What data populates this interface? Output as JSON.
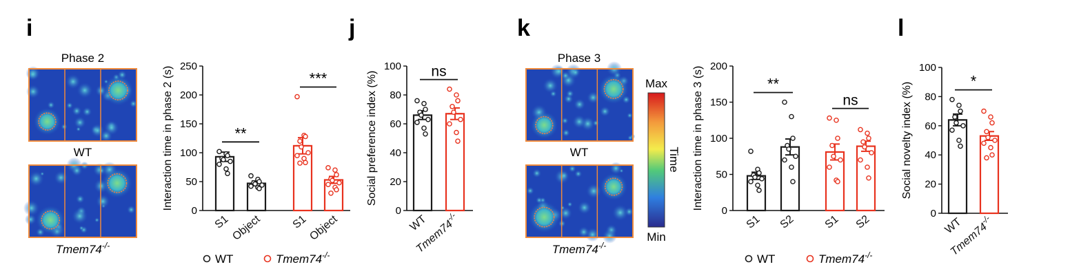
{
  "colors": {
    "wt": "#1a1a1a",
    "ko": "#e8321e",
    "heat_border": "#f08a3a"
  },
  "panels": {
    "i": {
      "letter": "i",
      "heatmap_title": "Phase 2",
      "wt_label": "WT",
      "ko_label": "Tmem74",
      "ko_superscript": "-/-"
    },
    "j": {
      "letter": "j"
    },
    "k": {
      "letter": "k",
      "heatmap_title": "Phase 3",
      "wt_label": "WT",
      "ko_label": "Tmem74",
      "ko_superscript": "-/-",
      "colorbar": {
        "max_label": "Max",
        "min_label": "Min",
        "axis_label": "Time"
      }
    },
    "l": {
      "letter": "l"
    }
  },
  "chart_data": [
    {
      "id": "i-bar",
      "type": "bar",
      "ylabel": "Interaction time in phase 2 (s)",
      "ylim": [
        0,
        250
      ],
      "yticks": [
        0,
        50,
        100,
        150,
        200,
        250
      ],
      "categories": [
        "S1",
        "Object",
        "S1",
        "Object"
      ],
      "groups": [
        "wt",
        "wt",
        "ko",
        "ko"
      ],
      "means": [
        93,
        47,
        112,
        53
      ],
      "sems": [
        8,
        4,
        14,
        6
      ],
      "points": [
        [
          102,
          98,
          95,
          90,
          88,
          85,
          80,
          72,
          64
        ],
        [
          60,
          54,
          50,
          48,
          46,
          44,
          42,
          40,
          38
        ],
        [
          197,
          130,
          128,
          120,
          110,
          100,
          95,
          90,
          83,
          82
        ],
        [
          74,
          70,
          62,
          55,
          52,
          48,
          45,
          40,
          36,
          30
        ]
      ],
      "significance": [
        {
          "from": 0,
          "to": 1,
          "label": "**"
        },
        {
          "from": 2,
          "to": 3,
          "label": "***"
        }
      ],
      "legend": {
        "wt": "WT",
        "ko": "Tmem74",
        "ko_sup": "-/-"
      }
    },
    {
      "id": "j-bar",
      "type": "bar",
      "ylabel": "Social preference index (%)",
      "ylim": [
        0,
        100
      ],
      "yticks": [
        0,
        20,
        40,
        60,
        80,
        100
      ],
      "categories": [
        "WT",
        "Tmem74"
      ],
      "category_sup": [
        "",
        "-/-"
      ],
      "groups": [
        "wt",
        "ko"
      ],
      "means": [
        66,
        67
      ],
      "sems": [
        3,
        4
      ],
      "points": [
        [
          76,
          74,
          70,
          68,
          66,
          63,
          61,
          57,
          53
        ],
        [
          84,
          80,
          76,
          72,
          68,
          63,
          60,
          54,
          48
        ]
      ],
      "significance": [
        {
          "from": 0,
          "to": 1,
          "label": "ns"
        }
      ]
    },
    {
      "id": "k-bar",
      "type": "bar",
      "ylabel": "Interaction time in phase 3 (s)",
      "ylim": [
        0,
        200
      ],
      "yticks": [
        0,
        50,
        100,
        150,
        200
      ],
      "categories": [
        "S1",
        "S2",
        "S1",
        "S2"
      ],
      "groups": [
        "wt",
        "wt",
        "ko",
        "ko"
      ],
      "means": [
        48,
        88,
        81,
        89
      ],
      "sems": [
        5,
        11,
        11,
        7
      ],
      "points": [
        [
          82,
          57,
          52,
          49,
          46,
          44,
          40,
          35,
          28
        ],
        [
          150,
          130,
          100,
          90,
          85,
          75,
          70,
          60,
          40
        ],
        [
          128,
          125,
          100,
          90,
          75,
          70,
          60,
          42,
          40
        ],
        [
          112,
          107,
          100,
          95,
          88,
          80,
          70,
          60,
          45
        ]
      ],
      "significance": [
        {
          "from": 0,
          "to": 1,
          "label": "**"
        },
        {
          "from": 2,
          "to": 3,
          "label": "ns"
        }
      ],
      "legend": {
        "wt": "WT",
        "ko": "Tmem74",
        "ko_sup": "-/-"
      }
    },
    {
      "id": "l-bar",
      "type": "bar",
      "ylabel": "Social novelty index (%)",
      "ylim": [
        0,
        100
      ],
      "yticks": [
        0,
        20,
        40,
        60,
        80,
        100
      ],
      "categories": [
        "WT",
        "Tmem74"
      ],
      "category_sup": [
        "",
        "-/-"
      ],
      "groups": [
        "wt",
        "ko"
      ],
      "means": [
        64,
        53
      ],
      "sems": [
        4,
        3
      ],
      "points": [
        [
          78,
          74,
          70,
          66,
          62,
          60,
          57,
          50,
          46
        ],
        [
          70,
          66,
          62,
          56,
          52,
          50,
          48,
          45,
          40,
          38
        ]
      ],
      "significance": [
        {
          "from": 0,
          "to": 1,
          "label": "*"
        }
      ]
    }
  ]
}
